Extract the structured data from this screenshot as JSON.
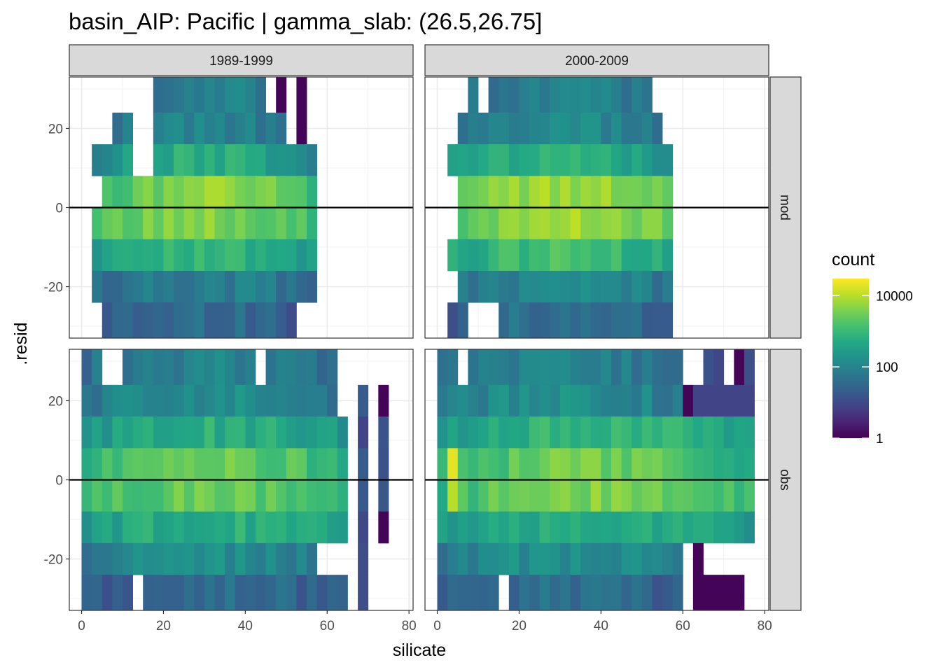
{
  "chart_data": {
    "type": "heatmap",
    "title": "basin_AIP: Pacific | gamma_slab: (26.5,26.75]",
    "xlabel": "silicate",
    "ylabel": ".resid",
    "xlim": [
      -3,
      81
    ],
    "ylim": [
      -33,
      33
    ],
    "x_ticks": [
      0,
      20,
      40,
      60,
      80
    ],
    "y_ticks": [
      -20,
      0,
      20
    ],
    "hline": 0,
    "grid": true,
    "col_facets": [
      "1989-1999",
      "2000-2009"
    ],
    "row_facets": [
      "mod",
      "obs"
    ],
    "fill": {
      "name": "count",
      "scale": "log10",
      "palette": "viridis",
      "domain": [
        1,
        30000
      ],
      "breaks": [
        1,
        100,
        10000
      ],
      "break_labels": [
        "1",
        "100",
        "10000"
      ]
    },
    "legend_position": "right",
    "bin_width": {
      "x": 2.5,
      "y": 8
    },
    "panels": [
      {
        "col": "1989-1999",
        "row": "mod",
        "bands": [
          {
            "y": [
              24,
              33
            ],
            "x_range": [
              17.5,
              45
            ],
            "base": 1.7,
            "peak": 2.0,
            "holes": [
              [
                45,
                47.5
              ]
            ],
            "extras": [
              [
                47.5,
                50,
                0
              ],
              [
                52.5,
                55,
                0
              ]
            ]
          },
          {
            "y": [
              16,
              24
            ],
            "x_range": [
              7.5,
              50
            ],
            "base": 1.7,
            "peak": 2.0,
            "holes": [
              [
                12.5,
                17.5
              ]
            ],
            "extras": [
              [
                52.5,
                55,
                0
              ]
            ]
          },
          {
            "y": [
              8,
              16
            ],
            "x_range": [
              2.5,
              57.5
            ],
            "base": 2.0,
            "peak": 2.8,
            "holes": [
              [
                12.5,
                17.5
              ]
            ]
          },
          {
            "y": [
              0,
              8
            ],
            "x_range": [
              5,
              57.5
            ],
            "base": 2.9,
            "peak": 3.7
          },
          {
            "y": [
              -8,
              0
            ],
            "x_range": [
              2.5,
              57.5
            ],
            "base": 3.0,
            "peak": 3.6
          },
          {
            "y": [
              -16,
              -8
            ],
            "x_range": [
              2.5,
              57.5
            ],
            "base": 2.4,
            "peak": 2.9
          },
          {
            "y": [
              -24,
              -16
            ],
            "x_range": [
              2.5,
              57.5
            ],
            "base": 1.6,
            "peak": 1.9
          },
          {
            "y": [
              -33,
              -24
            ],
            "x_range": [
              5,
              52.5
            ],
            "base": 1.2,
            "peak": 1.6
          }
        ]
      },
      {
        "col": "2000-2009",
        "row": "mod",
        "bands": [
          {
            "y": [
              24,
              33
            ],
            "x_range": [
              7.5,
              52.5
            ],
            "base": 1.6,
            "peak": 2.0,
            "holes": [
              [
                10,
                12.5
              ]
            ]
          },
          {
            "y": [
              16,
              24
            ],
            "x_range": [
              5,
              55
            ],
            "base": 1.8,
            "peak": 2.1
          },
          {
            "y": [
              8,
              16
            ],
            "x_range": [
              2.5,
              57.5
            ],
            "base": 2.3,
            "peak": 2.8
          },
          {
            "y": [
              0,
              8
            ],
            "x_range": [
              5,
              57.5
            ],
            "base": 3.2,
            "peak": 3.8
          },
          {
            "y": [
              -8,
              0
            ],
            "x_range": [
              5,
              57.5
            ],
            "base": 3.3,
            "peak": 3.9
          },
          {
            "y": [
              -16,
              -8
            ],
            "x_range": [
              2.5,
              57.5
            ],
            "base": 2.6,
            "peak": 3.1
          },
          {
            "y": [
              -24,
              -16
            ],
            "x_range": [
              5,
              57.5
            ],
            "base": 1.7,
            "peak": 2.1
          },
          {
            "y": [
              -33,
              -24
            ],
            "x_range": [
              2.5,
              57.5
            ],
            "base": 1.2,
            "peak": 1.7,
            "holes": [
              [
                7.5,
                15
              ]
            ]
          }
        ]
      },
      {
        "col": "1989-1999",
        "row": "obs",
        "bands": [
          {
            "y": [
              24,
              33
            ],
            "x_range": [
              0,
              62.5
            ],
            "base": 1.6,
            "peak": 2.0,
            "holes": [
              [
                5,
                10
              ],
              [
                42.5,
                45
              ]
            ]
          },
          {
            "y": [
              16,
              24
            ],
            "x_range": [
              0,
              62.5
            ],
            "base": 1.7,
            "peak": 2.2,
            "extras": [
              [
                67.5,
                70,
                1
              ],
              [
                72.5,
                75,
                0
              ]
            ]
          },
          {
            "y": [
              8,
              16
            ],
            "x_range": [
              0,
              65
            ],
            "base": 2.3,
            "peak": 2.8,
            "extras": [
              [
                67.5,
                70,
                1
              ],
              [
                72.5,
                75,
                1
              ]
            ]
          },
          {
            "y": [
              0,
              8
            ],
            "x_range": [
              0,
              65
            ],
            "base": 2.8,
            "peak": 3.4,
            "extras": [
              [
                67.5,
                70,
                1
              ],
              [
                72.5,
                75,
                1
              ]
            ]
          },
          {
            "y": [
              -8,
              0
            ],
            "x_range": [
              0,
              65
            ],
            "base": 2.9,
            "peak": 3.4,
            "extras": [
              [
                67.5,
                70,
                1
              ],
              [
                72.5,
                75,
                1
              ]
            ]
          },
          {
            "y": [
              -16,
              -8
            ],
            "x_range": [
              0,
              65
            ],
            "base": 2.4,
            "peak": 2.8,
            "extras": [
              [
                67.5,
                70,
                1
              ],
              [
                72.5,
                75,
                0
              ]
            ]
          },
          {
            "y": [
              -24,
              -16
            ],
            "x_range": [
              0,
              57.5
            ],
            "base": 1.8,
            "peak": 2.2,
            "extras": [
              [
                67.5,
                70,
                1
              ]
            ]
          },
          {
            "y": [
              -33,
              -24
            ],
            "x_range": [
              0,
              65
            ],
            "base": 1.2,
            "peak": 1.6,
            "holes": [
              [
                12.5,
                15
              ]
            ],
            "extras": [
              [
                67.5,
                70,
                1
              ]
            ]
          }
        ]
      },
      {
        "col": "2000-2009",
        "row": "obs",
        "bands": [
          {
            "y": [
              24,
              33
            ],
            "x_range": [
              0,
              60
            ],
            "base": 1.6,
            "peak": 2.0,
            "holes": [
              [
                5,
                7.5
              ]
            ],
            "extras": [
              [
                65,
                67.5,
                1
              ],
              [
                67.5,
                70,
                1
              ],
              [
                72.5,
                75,
                0
              ],
              [
                75,
                77.5,
                1
              ]
            ]
          },
          {
            "y": [
              16,
              24
            ],
            "x_range": [
              0,
              60
            ],
            "base": 1.8,
            "peak": 2.2,
            "extras": [
              [
                60,
                62.5,
                0
              ],
              [
                62.5,
                77.5,
                1
              ]
            ]
          },
          {
            "y": [
              8,
              16
            ],
            "x_range": [
              0,
              77.5
            ],
            "base": 2.3,
            "peak": 3.0
          },
          {
            "y": [
              0,
              8
            ],
            "x_range": [
              0,
              77.5
            ],
            "base": 2.7,
            "peak": 3.5,
            "spike": [
              [
                2.5,
                5,
                4.3
              ]
            ]
          },
          {
            "y": [
              -8,
              0
            ],
            "x_range": [
              0,
              77.5
            ],
            "base": 2.9,
            "peak": 3.6,
            "spike": [
              [
                2.5,
                5,
                4.0
              ]
            ]
          },
          {
            "y": [
              -16,
              -8
            ],
            "x_range": [
              0,
              77.5
            ],
            "base": 2.4,
            "peak": 2.8
          },
          {
            "y": [
              -24,
              -16
            ],
            "x_range": [
              0,
              60
            ],
            "base": 1.8,
            "peak": 2.2,
            "extras": [
              [
                62.5,
                65,
                0
              ]
            ]
          },
          {
            "y": [
              -33,
              -24
            ],
            "x_range": [
              0,
              60
            ],
            "base": 1.2,
            "peak": 1.6,
            "holes": [
              [
                15,
                17.5
              ]
            ],
            "extras": [
              [
                62.5,
                65,
                0
              ],
              [
                65,
                70,
                0
              ],
              [
                70,
                75,
                0
              ]
            ]
          }
        ]
      }
    ]
  }
}
